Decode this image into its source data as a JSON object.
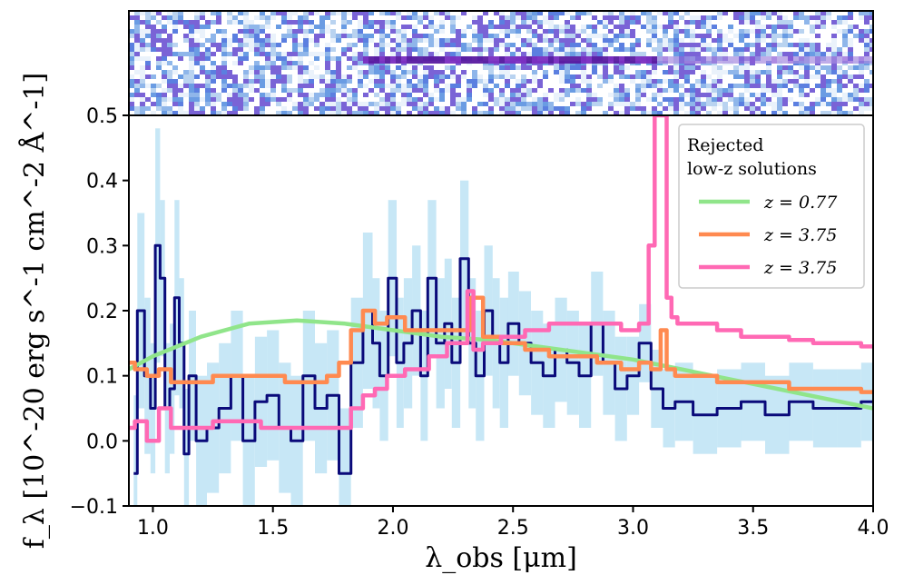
{
  "chart_data": {
    "type": "line",
    "title": "",
    "xlabel": "λ_obs [μm]",
    "ylabel": "f_λ [10^-20 erg s^-1 cm^-2 Å^-1]",
    "xlim": [
      0.9,
      4.0
    ],
    "ylim": [
      -0.1,
      0.5
    ],
    "x_ticks": [
      1.0,
      1.5,
      2.0,
      2.5,
      3.0,
      3.5,
      4.0
    ],
    "x_tick_labels": [
      "1.0",
      "1.5",
      "2.0",
      "2.5",
      "3.0",
      "3.5",
      "4.0"
    ],
    "y_ticks": [
      -0.1,
      0.0,
      0.1,
      0.2,
      0.3,
      0.4,
      0.5
    ],
    "y_tick_labels": [
      "−0.1",
      "0.0",
      "0.1",
      "0.2",
      "0.3",
      "0.4",
      "0.5"
    ],
    "grid": false,
    "legend": {
      "title_line1": "Rejected",
      "title_line2": "low-z solutions",
      "location": "top-right",
      "entries": [
        {
          "label": "z = 0.77",
          "color": "#90e58a"
        },
        {
          "label": "z = 3.75",
          "color": "#ff8a50"
        },
        {
          "label": "z = 3.75",
          "color": "#ff69b4"
        }
      ]
    },
    "series": [
      {
        "name": "observed spectrum",
        "style": "step",
        "color": "#0a0a7a",
        "error_color": "#bde3f5",
        "x": [
          0.92,
          0.95,
          0.98,
          1.0,
          1.02,
          1.04,
          1.06,
          1.08,
          1.1,
          1.12,
          1.14,
          1.16,
          1.2,
          1.25,
          1.3,
          1.35,
          1.4,
          1.45,
          1.5,
          1.55,
          1.6,
          1.65,
          1.7,
          1.75,
          1.8,
          1.85,
          1.9,
          1.93,
          1.96,
          2.0,
          2.03,
          2.06,
          2.1,
          2.13,
          2.16,
          2.2,
          2.23,
          2.26,
          2.3,
          2.33,
          2.36,
          2.4,
          2.43,
          2.46,
          2.5,
          2.55,
          2.6,
          2.65,
          2.7,
          2.75,
          2.8,
          2.85,
          2.9,
          2.95,
          3.0,
          3.05,
          3.1,
          3.15,
          3.2,
          3.3,
          3.4,
          3.5,
          3.6,
          3.7,
          3.8,
          3.9,
          4.0
        ],
        "y": [
          -0.05,
          0.2,
          0.1,
          0.05,
          0.3,
          0.25,
          0.05,
          0.08,
          0.22,
          0.15,
          -0.02,
          0.1,
          0.0,
          0.02,
          0.05,
          0.1,
          0.0,
          0.06,
          0.07,
          0.02,
          0.0,
          0.1,
          0.05,
          0.07,
          -0.05,
          0.12,
          0.2,
          0.15,
          0.1,
          0.25,
          0.12,
          0.15,
          0.2,
          0.1,
          0.25,
          0.15,
          0.18,
          0.12,
          0.28,
          0.15,
          0.1,
          0.2,
          0.15,
          0.12,
          0.18,
          0.15,
          0.12,
          0.1,
          0.14,
          0.12,
          0.1,
          0.18,
          0.12,
          0.08,
          0.1,
          0.15,
          0.08,
          0.05,
          0.06,
          0.04,
          0.05,
          0.06,
          0.04,
          0.06,
          0.05,
          0.05,
          0.06
        ],
        "err": [
          0.12,
          0.15,
          0.12,
          0.1,
          0.18,
          0.12,
          0.1,
          0.1,
          0.15,
          0.1,
          0.1,
          0.1,
          0.1,
          0.1,
          0.1,
          0.1,
          0.1,
          0.1,
          0.1,
          0.1,
          0.1,
          0.1,
          0.1,
          0.1,
          0.1,
          0.1,
          0.12,
          0.1,
          0.1,
          0.12,
          0.1,
          0.1,
          0.1,
          0.1,
          0.12,
          0.1,
          0.1,
          0.1,
          0.12,
          0.1,
          0.1,
          0.1,
          0.1,
          0.1,
          0.08,
          0.08,
          0.08,
          0.08,
          0.08,
          0.08,
          0.08,
          0.08,
          0.08,
          0.08,
          0.06,
          0.06,
          0.06,
          0.06,
          0.06,
          0.06,
          0.06,
          0.06,
          0.06,
          0.06,
          0.06,
          0.06,
          0.06
        ]
      },
      {
        "name": "z = 0.77",
        "style": "line",
        "color": "#90e58a",
        "x": [
          0.9,
          1.0,
          1.2,
          1.4,
          1.6,
          1.8,
          2.0,
          2.2,
          2.4,
          2.6,
          2.8,
          3.0,
          3.2,
          3.4,
          3.6,
          3.8,
          4.0
        ],
        "y": [
          0.11,
          0.13,
          0.16,
          0.18,
          0.185,
          0.18,
          0.17,
          0.16,
          0.155,
          0.145,
          0.135,
          0.125,
          0.11,
          0.095,
          0.08,
          0.065,
          0.05
        ]
      },
      {
        "name": "z = 3.75",
        "style": "step",
        "color": "#ff8a50",
        "x": [
          0.9,
          0.95,
          1.0,
          1.05,
          1.1,
          1.2,
          1.3,
          1.4,
          1.5,
          1.6,
          1.7,
          1.75,
          1.8,
          1.85,
          1.9,
          1.95,
          2.0,
          2.1,
          2.2,
          2.3,
          2.35,
          2.4,
          2.5,
          2.6,
          2.7,
          2.8,
          2.9,
          3.0,
          3.05,
          3.1,
          3.13,
          3.15,
          3.2,
          3.3,
          3.4,
          3.5,
          3.6,
          3.7,
          3.8,
          3.9,
          4.0
        ],
        "y": [
          0.12,
          0.11,
          0.1,
          0.11,
          0.09,
          0.09,
          0.1,
          0.1,
          0.1,
          0.09,
          0.09,
          0.1,
          0.12,
          0.17,
          0.2,
          0.18,
          0.19,
          0.17,
          0.17,
          0.17,
          0.22,
          0.16,
          0.15,
          0.14,
          0.13,
          0.13,
          0.12,
          0.11,
          0.12,
          0.11,
          0.17,
          0.11,
          0.1,
          0.1,
          0.09,
          0.09,
          0.09,
          0.08,
          0.08,
          0.08,
          0.075
        ]
      },
      {
        "name": "z = 3.75",
        "style": "step",
        "color": "#ff69b4",
        "x": [
          0.9,
          0.95,
          1.0,
          1.05,
          1.1,
          1.2,
          1.3,
          1.4,
          1.5,
          1.6,
          1.7,
          1.8,
          1.85,
          1.9,
          1.95,
          2.0,
          2.1,
          2.2,
          2.25,
          2.3,
          2.32,
          2.35,
          2.4,
          2.5,
          2.6,
          2.7,
          2.8,
          2.9,
          3.0,
          3.05,
          3.08,
          3.1,
          3.13,
          3.15,
          3.17,
          3.2,
          3.3,
          3.4,
          3.5,
          3.6,
          3.7,
          3.8,
          3.9,
          4.0
        ],
        "y": [
          0.02,
          0.03,
          0.0,
          0.05,
          0.02,
          0.02,
          0.03,
          0.03,
          0.02,
          0.02,
          0.02,
          0.02,
          0.05,
          0.07,
          0.08,
          0.1,
          0.11,
          0.13,
          0.15,
          0.15,
          0.23,
          0.14,
          0.15,
          0.16,
          0.17,
          0.18,
          0.18,
          0.18,
          0.17,
          0.18,
          0.3,
          0.5,
          0.5,
          0.22,
          0.19,
          0.18,
          0.18,
          0.17,
          0.16,
          0.16,
          0.155,
          0.15,
          0.15,
          0.145
        ]
      }
    ]
  }
}
